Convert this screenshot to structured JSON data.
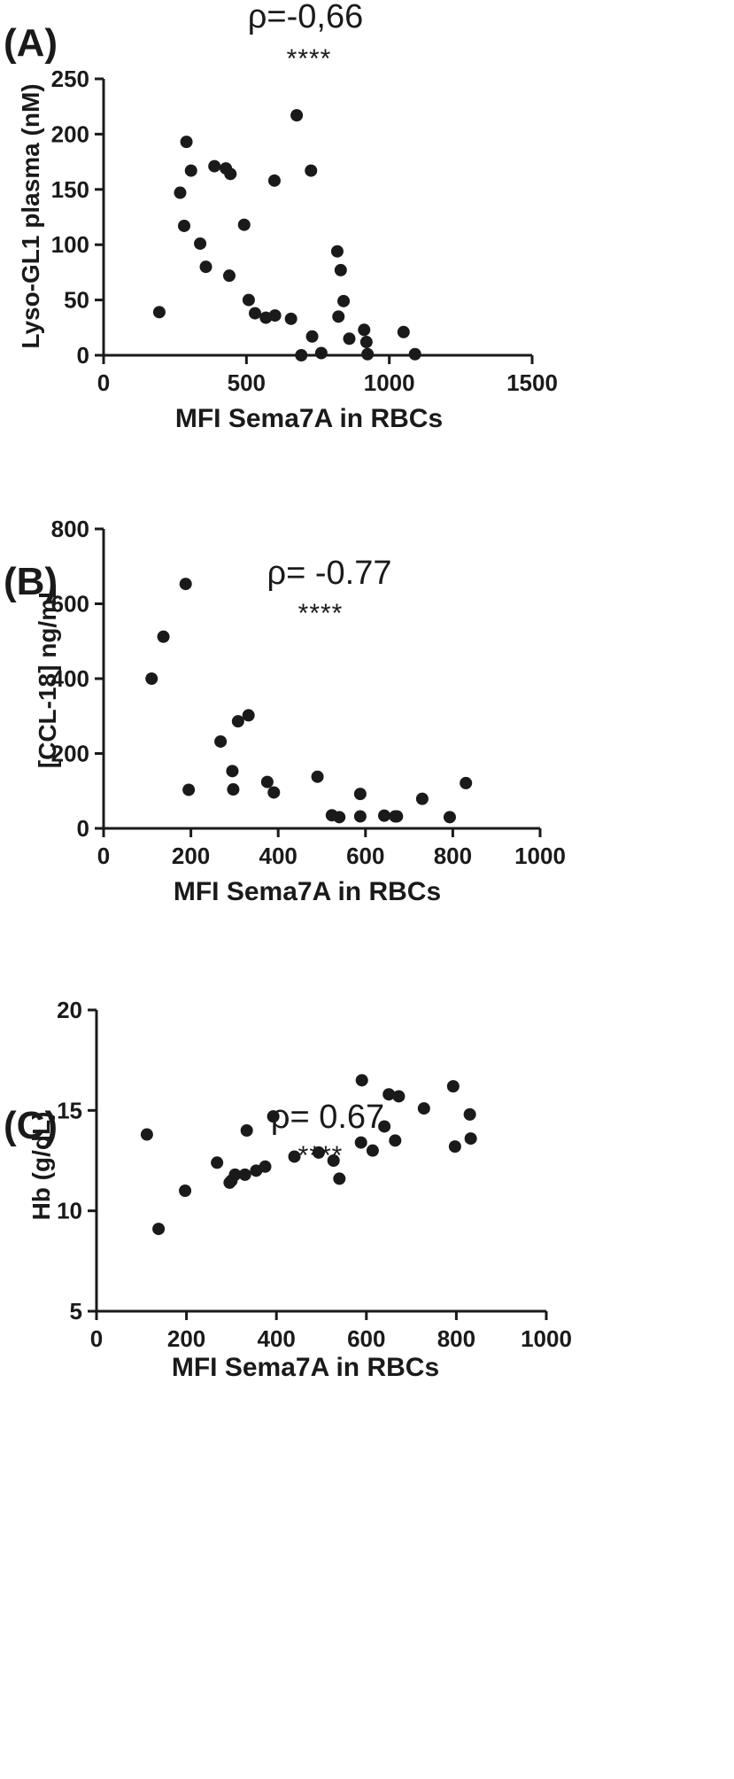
{
  "chart_data": [
    {
      "type": "scatter",
      "panel_label": "(A)",
      "title": "ρ=-0,66",
      "significance": "****",
      "xlabel": "MFI Sema7A in RBCs",
      "ylabel": "Lyso-GL1 plasma (nM)",
      "xlim": [
        0,
        1500
      ],
      "ylim": [
        0,
        250
      ],
      "xticks": [
        "0",
        "500",
        "1000",
        "1500"
      ],
      "yticks": [
        "0",
        "50",
        "100",
        "150",
        "200",
        "250"
      ],
      "xtick_values": [
        0,
        500,
        1000,
        1500
      ],
      "ytick_values": [
        0,
        50,
        100,
        150,
        200,
        250
      ],
      "points": [
        [
          195,
          39
        ],
        [
          268,
          147
        ],
        [
          282,
          117
        ],
        [
          290,
          193
        ],
        [
          306,
          167
        ],
        [
          338,
          101
        ],
        [
          358,
          80
        ],
        [
          388,
          171
        ],
        [
          428,
          169
        ],
        [
          440,
          72
        ],
        [
          444,
          164
        ],
        [
          492,
          118
        ],
        [
          508,
          50
        ],
        [
          530,
          38
        ],
        [
          568,
          34
        ],
        [
          598,
          158
        ],
        [
          600,
          36
        ],
        [
          656,
          33
        ],
        [
          676,
          217
        ],
        [
          692,
          0
        ],
        [
          726,
          167
        ],
        [
          730,
          17
        ],
        [
          762,
          2
        ],
        [
          818,
          94
        ],
        [
          822,
          35
        ],
        [
          830,
          77
        ],
        [
          840,
          49
        ],
        [
          860,
          15
        ],
        [
          912,
          23
        ],
        [
          920,
          12
        ],
        [
          924,
          1
        ],
        [
          1050,
          21
        ],
        [
          1090,
          1
        ]
      ]
    },
    {
      "type": "scatter",
      "panel_label": "(B)",
      "title": "ρ= -0.77",
      "significance": "****",
      "xlabel": "MFI Sema7A in RBCs",
      "ylabel": "[CCL-18] ng/mL",
      "xlim": [
        0,
        1000
      ],
      "ylim": [
        0,
        800
      ],
      "xticks": [
        "0",
        "200",
        "400",
        "600",
        "800",
        "1000"
      ],
      "yticks": [
        "0",
        "200",
        "400",
        "600",
        "800"
      ],
      "xtick_values": [
        0,
        200,
        400,
        600,
        800,
        1000
      ],
      "ytick_values": [
        0,
        200,
        400,
        600,
        800
      ],
      "points": [
        [
          110,
          400
        ],
        [
          137,
          512
        ],
        [
          188,
          653
        ],
        [
          195,
          103
        ],
        [
          268,
          232
        ],
        [
          295,
          153
        ],
        [
          297,
          104
        ],
        [
          308,
          286
        ],
        [
          332,
          302
        ],
        [
          375,
          124
        ],
        [
          390,
          96
        ],
        [
          490,
          138
        ],
        [
          523,
          35
        ],
        [
          540,
          30
        ],
        [
          588,
          92
        ],
        [
          588,
          32
        ],
        [
          643,
          34
        ],
        [
          668,
          32
        ],
        [
          672,
          32
        ],
        [
          730,
          79
        ],
        [
          793,
          30
        ],
        [
          830,
          121
        ]
      ]
    },
    {
      "type": "scatter",
      "panel_label": "(C)",
      "title": "ρ= 0.67",
      "significance": "****",
      "xlabel": "MFI Sema7A in RBCs",
      "ylabel": "Hb (g/dL)",
      "xlim": [
        0,
        1000
      ],
      "ylim": [
        5,
        20
      ],
      "xticks": [
        "0",
        "200",
        "400",
        "600",
        "800",
        "1000"
      ],
      "yticks": [
        "5",
        "10",
        "15",
        "20"
      ],
      "xtick_values": [
        0,
        200,
        400,
        600,
        800,
        1000
      ],
      "ytick_values": [
        5,
        10,
        15,
        20
      ],
      "points": [
        [
          112,
          13.8
        ],
        [
          138,
          9.1
        ],
        [
          197,
          11.0
        ],
        [
          268,
          12.4
        ],
        [
          296,
          11.4
        ],
        [
          300,
          11.5
        ],
        [
          308,
          11.8
        ],
        [
          330,
          11.8
        ],
        [
          334,
          14.0
        ],
        [
          355,
          12.0
        ],
        [
          375,
          12.2
        ],
        [
          393,
          14.7
        ],
        [
          440,
          12.7
        ],
        [
          494,
          12.9
        ],
        [
          527,
          12.5
        ],
        [
          540,
          11.6
        ],
        [
          588,
          13.4
        ],
        [
          590,
          16.5
        ],
        [
          614,
          13.0
        ],
        [
          640,
          14.2
        ],
        [
          650,
          15.8
        ],
        [
          664,
          13.5
        ],
        [
          672,
          15.7
        ],
        [
          728,
          15.1
        ],
        [
          793,
          16.2
        ],
        [
          797,
          13.2
        ],
        [
          830,
          14.8
        ],
        [
          832,
          13.6
        ]
      ]
    }
  ]
}
